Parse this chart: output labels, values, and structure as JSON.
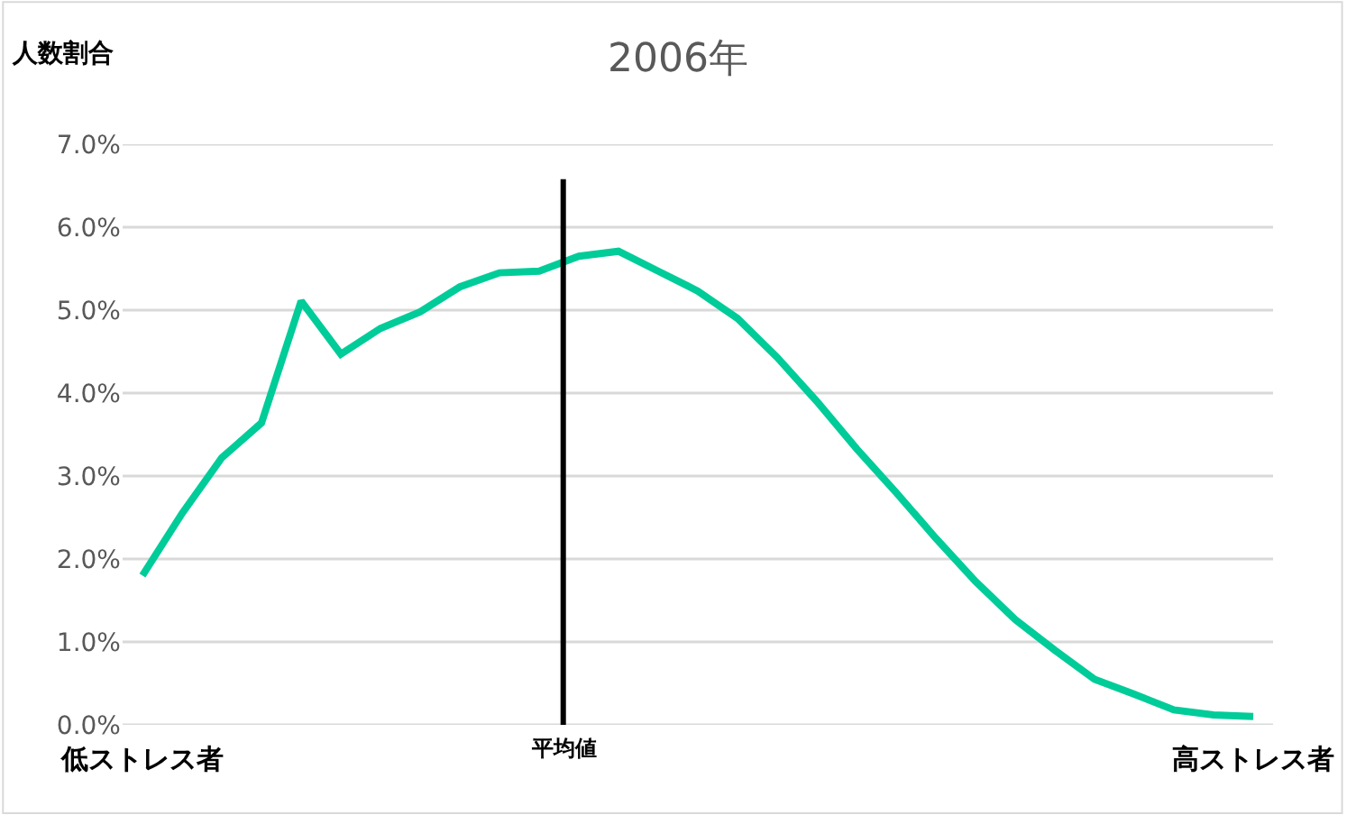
{
  "chart_data": {
    "type": "line",
    "title": "2006年",
    "ylabel": "人数割合",
    "categories": [
      "低ストレス者",
      null,
      null,
      null,
      null,
      null,
      null,
      null,
      null,
      null,
      null,
      null,
      null,
      null,
      null,
      null,
      null,
      null,
      null,
      null,
      null,
      null,
      null,
      null,
      null,
      null,
      null,
      null,
      "高ストレス者"
    ],
    "series": [
      {
        "color": "#00cc99",
        "values": [
          1.8,
          2.55,
          3.22,
          3.64,
          5.11,
          4.47,
          4.78,
          4.98,
          5.28,
          5.45,
          5.47,
          5.65,
          5.71,
          5.47,
          5.23,
          4.9,
          4.43,
          3.9,
          3.33,
          2.8,
          2.25,
          1.73,
          1.27,
          0.9,
          0.55,
          0.37,
          0.18,
          0.12,
          0.1
        ]
      }
    ],
    "ylim": [
      0,
      7
    ],
    "yticks": [
      {
        "value": 0,
        "label": "0.0%"
      },
      {
        "value": 1,
        "label": "1.0%"
      },
      {
        "value": 2,
        "label": "2.0%"
      },
      {
        "value": 3,
        "label": "3.0%"
      },
      {
        "value": 4,
        "label": "4.0%"
      },
      {
        "value": 5,
        "label": "5.0%"
      },
      {
        "value": 6,
        "label": "6.0%"
      },
      {
        "value": 7,
        "label": "7.0%"
      }
    ],
    "annotations": [
      "平均値"
    ],
    "grid": "y",
    "marker": "none",
    "line_style": "solid"
  }
}
